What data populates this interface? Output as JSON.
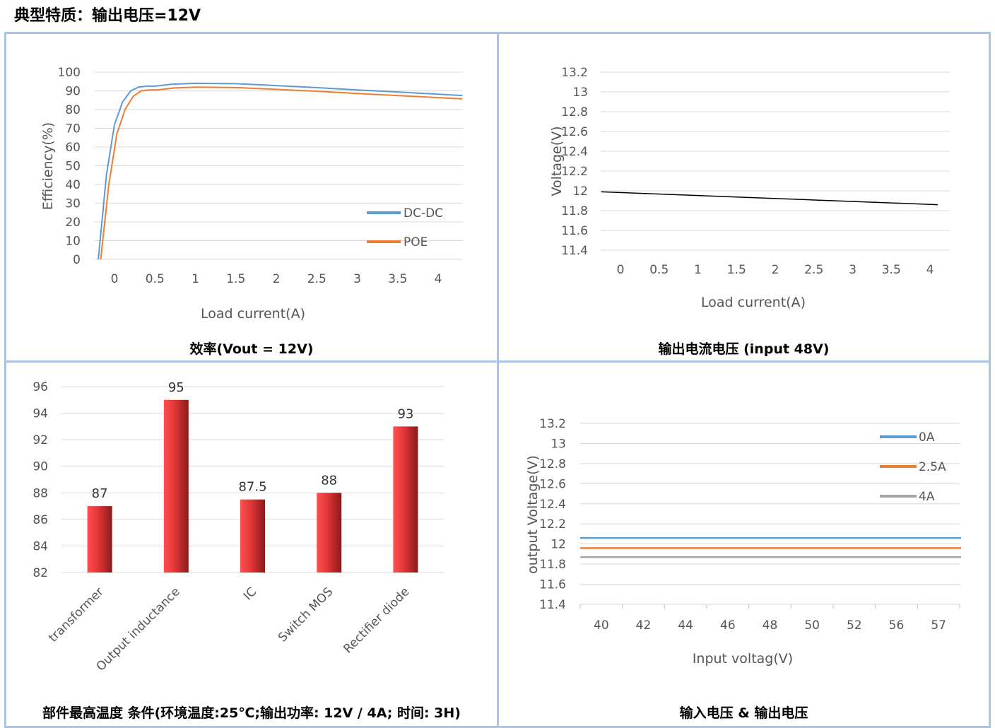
{
  "page_title": "典型特质：输出电压=12V",
  "colors": {
    "frame": "#a9c4e4",
    "blue": "#5b9bd5",
    "orange": "#ed7d31",
    "gray": "#a5a5a5",
    "bar": "#e03535",
    "line": "#000000"
  },
  "chart_data": [
    {
      "id": "efficiency",
      "type": "line",
      "caption": "效率(Vout = 12V)",
      "xlabel": "Load current(A)",
      "ylabel": "Efficiency(%)",
      "xticks": [
        "0",
        "0.5",
        "1",
        "1.5",
        "2",
        "2.5",
        "3",
        "3.5",
        "4"
      ],
      "yticks": [
        "0",
        "10",
        "20",
        "30",
        "40",
        "50",
        "60",
        "70",
        "80",
        "90",
        "100"
      ],
      "xlim": [
        -0.2,
        4.3
      ],
      "ylim": [
        0,
        100
      ],
      "legend_position": "right",
      "series": [
        {
          "name": "DC-DC",
          "color": "#5b9bd5",
          "x": [
            -0.2,
            -0.1,
            0,
            0.1,
            0.2,
            0.3,
            0.4,
            0.5,
            0.7,
            1,
            1.5,
            2,
            2.5,
            3,
            3.5,
            4,
            4.3
          ],
          "y": [
            0,
            45,
            72,
            84,
            90,
            92,
            92.5,
            92.5,
            93.5,
            94,
            93.8,
            92.8,
            91.7,
            90.5,
            89.4,
            88.2,
            87.5
          ]
        },
        {
          "name": "POE",
          "color": "#ed7d31",
          "x": [
            -0.17,
            -0.07,
            0.03,
            0.13,
            0.23,
            0.33,
            0.43,
            0.53,
            0.73,
            1.03,
            1.53,
            2.03,
            2.53,
            3.03,
            3.53,
            4.03,
            4.3
          ],
          "y": [
            0,
            40,
            67,
            80,
            87,
            90,
            90.5,
            90.5,
            91.5,
            92,
            91.7,
            90.7,
            89.7,
            88.5,
            87.4,
            86.3,
            85.7
          ]
        }
      ]
    },
    {
      "id": "voltage-vs-current",
      "type": "line",
      "caption": "输出电流电压  (input 48V)",
      "xlabel": "Load current(A)",
      "ylabel": "Voltage(V)",
      "xticks": [
        "0",
        "0.5",
        "1",
        "1.5",
        "2",
        "2.5",
        "3",
        "3.5",
        "4"
      ],
      "yticks": [
        "11.4",
        "11.6",
        "11.8",
        "12",
        "12.2",
        "12.4",
        "12.6",
        "12.8",
        "13",
        "13.2"
      ],
      "xlim": [
        -0.25,
        4.25
      ],
      "ylim": [
        11.4,
        13.2
      ],
      "series": [
        {
          "color": "#000000",
          "x": [
            -0.25,
            4.1
          ],
          "y": [
            11.99,
            11.86
          ]
        }
      ]
    },
    {
      "id": "component-temperature",
      "type": "bar",
      "caption": "部件最高温度  条件(环境温度:25℃;输出功率: 12V / 4A;  时间: 3H)",
      "categories": [
        "transformer",
        "Output inductance",
        "IC",
        "Switch MOS",
        "Rectifier diode"
      ],
      "values": [
        87,
        95,
        87.5,
        88,
        93
      ],
      "data_labels": [
        "87",
        "95",
        "87.5",
        "88",
        "93"
      ],
      "yticks": [
        "82",
        "84",
        "86",
        "88",
        "90",
        "92",
        "94",
        "96"
      ],
      "ylim": [
        82,
        96
      ]
    },
    {
      "id": "input-vs-output-voltage",
      "type": "line",
      "caption": "输入电压  &  输出电压",
      "xlabel": "Input voltag(V)",
      "ylabel": "output Voltage(V)",
      "categories": [
        "40",
        "42",
        "44",
        "46",
        "48",
        "50",
        "52",
        "56",
        "57"
      ],
      "yticks": [
        "11.4",
        "11.6",
        "11.8",
        "12",
        "12.2",
        "12.4",
        "12.6",
        "12.8",
        "13",
        "13.2"
      ],
      "ylim": [
        11.4,
        13.2
      ],
      "legend_position": "top-right",
      "series": [
        {
          "name": "0A",
          "color": "#5b9bd5",
          "values": [
            12.06,
            12.06,
            12.06,
            12.06,
            12.06,
            12.06,
            12.06,
            12.06,
            12.06
          ]
        },
        {
          "name": "2.5A",
          "color": "#ed7d31",
          "values": [
            11.96,
            11.96,
            11.96,
            11.96,
            11.96,
            11.96,
            11.96,
            11.96,
            11.96
          ]
        },
        {
          "name": "4A",
          "color": "#a5a5a5",
          "values": [
            11.87,
            11.87,
            11.87,
            11.87,
            11.87,
            11.87,
            11.87,
            11.87,
            11.87
          ]
        }
      ]
    }
  ]
}
